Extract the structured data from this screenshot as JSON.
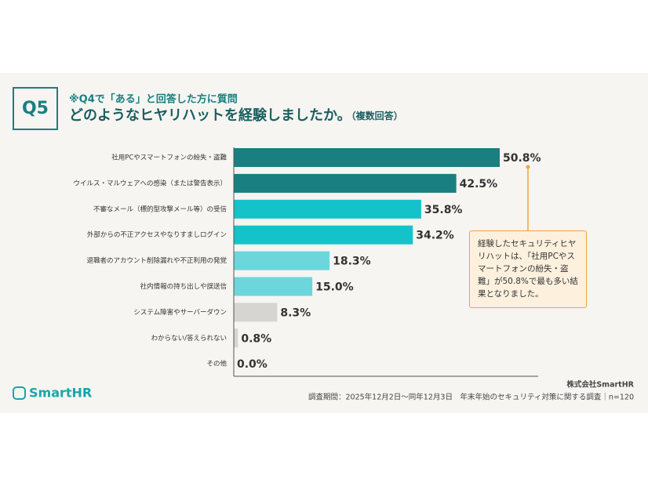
{
  "header": {
    "question": "Q5",
    "note": "※Q4で「ある」と回答した方に質問",
    "title": "どのようなヒヤリハットを経験しましたか。",
    "title_note": "（複数回答）"
  },
  "chart_data": {
    "type": "bar",
    "orientation": "horizontal",
    "categories": [
      "社用PCやスマートフォンの紛失・盗難",
      "ウイルス・マルウェアへの感染（または警告表示）",
      "不審なメール（標的型攻撃メール等）の受信",
      "外部からの不正アクセスやなりすましログイン",
      "退職者のアカウント削除漏れや不正利用の発覚",
      "社内情報の持ち出しや誤送信",
      "システム障害やサーバーダウン",
      "わからない/答えられない",
      "その他"
    ],
    "values": [
      50.8,
      42.5,
      35.8,
      34.2,
      18.3,
      15.0,
      8.3,
      0.8,
      0.0
    ],
    "value_labels": [
      "50.8%",
      "42.5%",
      "35.8%",
      "34.2%",
      "18.3%",
      "15.0%",
      "8.3%",
      "0.8%",
      "0.0%"
    ],
    "colors": [
      "#1a7f80",
      "#1a7f80",
      "#14c3c9",
      "#14c3c9",
      "#6dd6dc",
      "#6dd6dc",
      "#d7d5d1",
      "#d7d5d1",
      "#d7d5d1"
    ]
  },
  "callout": "経験したセキュリティヒヤリハットは、「社用PCやスマートフォンの紛失・盗難」が50.8%で最も多い結果となりました。",
  "footer": {
    "logo": "SmartHR",
    "company": "株式会社SmartHR",
    "source": "調査期間：2025年12月2日～同年12月3日　年末年始のセキュリティ対策に関する調査｜n=120"
  }
}
